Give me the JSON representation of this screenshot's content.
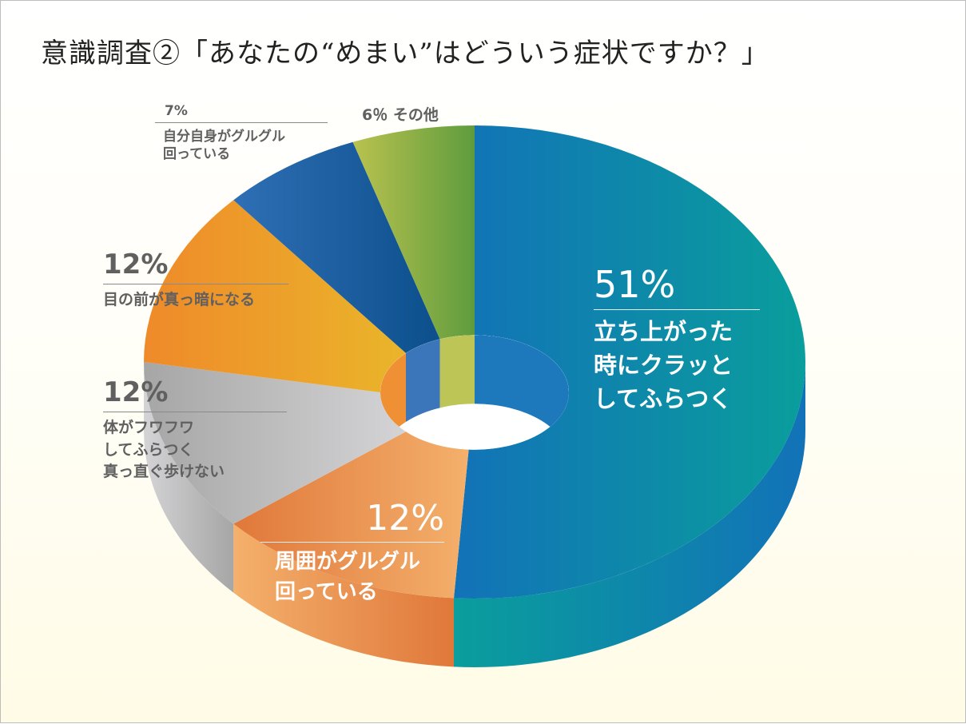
{
  "title": "意識調査②「あなたの“めまい”はどういう症状ですか？」",
  "chart_data": {
    "type": "pie",
    "style": "3d-donut",
    "title": "意識調査②「あなたの“めまい”はどういう症状ですか？」",
    "slices": [
      {
        "value": 51,
        "pct": "51%",
        "lines": [
          "立ち上がった",
          "時にクラッと",
          "してふらつく"
        ],
        "color": "#1272b8",
        "color2": "#0a9e9c"
      },
      {
        "value": 12,
        "pct": "12%",
        "lines": [
          "周囲がグルグル",
          "回っている"
        ],
        "color": "#e0783a",
        "color2": "#f4b06c"
      },
      {
        "value": 12,
        "pct": "12%",
        "lines": [
          "体がフワフワ",
          "してふらつく",
          "真っ直ぐ歩けない"
        ],
        "color": "#a6a6a6",
        "color2": "#d4d4d6"
      },
      {
        "value": 12,
        "pct": "12%",
        "lines": [
          "目の前が真っ暗になる"
        ],
        "color": "#ef8a2a",
        "color2": "#eab52a"
      },
      {
        "value": 7,
        "pct": "7%",
        "lines": [
          "自分自身がグルグル",
          "回っている"
        ],
        "color": "#2f6fb5",
        "color2": "#0c4f8c"
      },
      {
        "value": 6,
        "pct": "6％",
        "lines": [
          "その他"
        ],
        "color": "#b9c24e",
        "color2": "#5f9c3e"
      }
    ]
  }
}
